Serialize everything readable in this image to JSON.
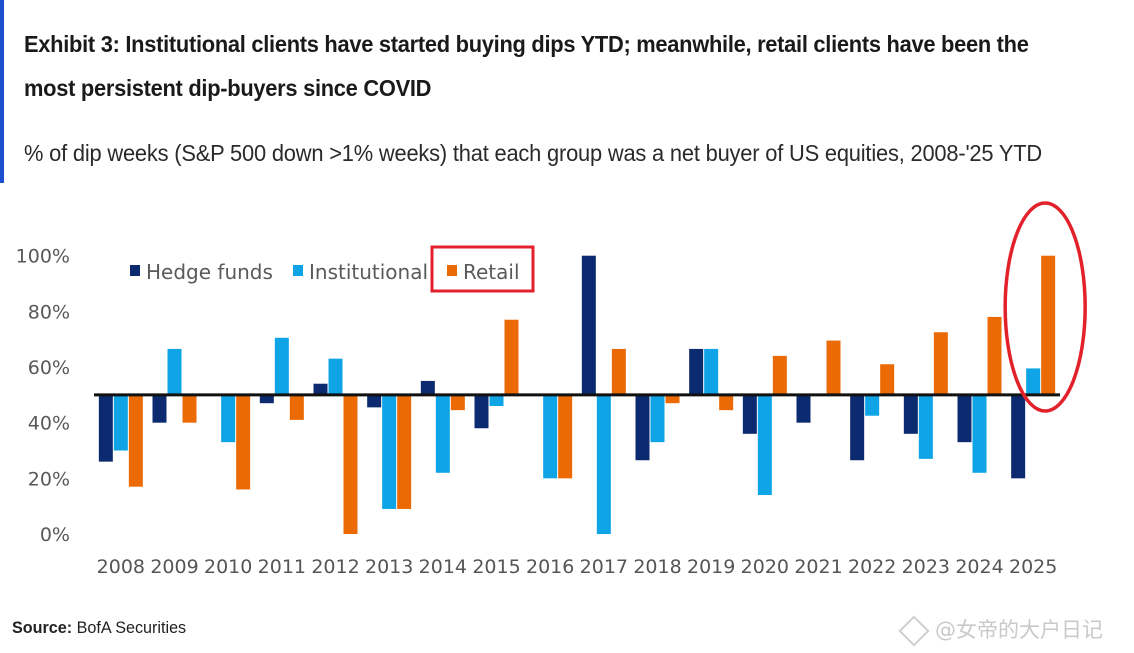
{
  "header": {
    "title_line1": "Exhibit 3: Institutional clients have started buying dips YTD; meanwhile, retail clients have been the",
    "title_line2": "most persistent dip-buyers since COVID",
    "subtitle": "% of dip weeks (S&P 500 down >1% weeks) that each group was a net buyer of US equities, 2008-'25 YTD"
  },
  "footer": {
    "source_label": "Source:",
    "source_value": " BofA Securities",
    "watermark": "@女帝的大户日记"
  },
  "annotations": {
    "legend_highlight": "Retail",
    "ellipse_highlight": "2025",
    "highlight_color": "#e3212b"
  },
  "chart_data": {
    "type": "bar",
    "title": "% of dip weeks (S&P 500 down >1% weeks) that each group was a net buyer of US equities, 2008-'25 YTD",
    "xlabel": "",
    "ylabel": "",
    "ylim": [
      0,
      100
    ],
    "yticks": [
      0,
      20,
      40,
      60,
      80,
      100
    ],
    "ytick_labels": [
      "0%",
      "20%",
      "40%",
      "60%",
      "80%",
      "100%"
    ],
    "baseline": 50,
    "grid": false,
    "legend_position": "top-left",
    "categories": [
      "2008",
      "2009",
      "2010",
      "2011",
      "2012",
      "2013",
      "2014",
      "2015",
      "2016",
      "2017",
      "2018",
      "2019",
      "2020",
      "2021",
      "2022",
      "2023",
      "2024",
      "2025"
    ],
    "series": [
      {
        "name": "Hedge funds",
        "color": "#0b2a6f",
        "values": [
          26,
          40,
          50,
          47,
          54,
          45.5,
          55,
          38,
          50,
          100,
          26.5,
          66.5,
          36,
          40,
          26.5,
          36,
          33,
          20
        ]
      },
      {
        "name": "Institutional",
        "color": "#0ea4e6",
        "values": [
          30,
          66.5,
          33,
          70.5,
          63,
          9,
          22,
          46,
          20,
          0,
          33,
          66.5,
          14,
          50,
          42.5,
          27,
          22,
          59.5
        ]
      },
      {
        "name": "Retail",
        "color": "#ec6a04",
        "values": [
          17,
          40,
          16,
          41,
          0,
          9,
          44.5,
          77,
          20,
          66.5,
          47,
          44.5,
          64,
          69.5,
          61,
          72.5,
          78,
          100
        ]
      }
    ]
  }
}
